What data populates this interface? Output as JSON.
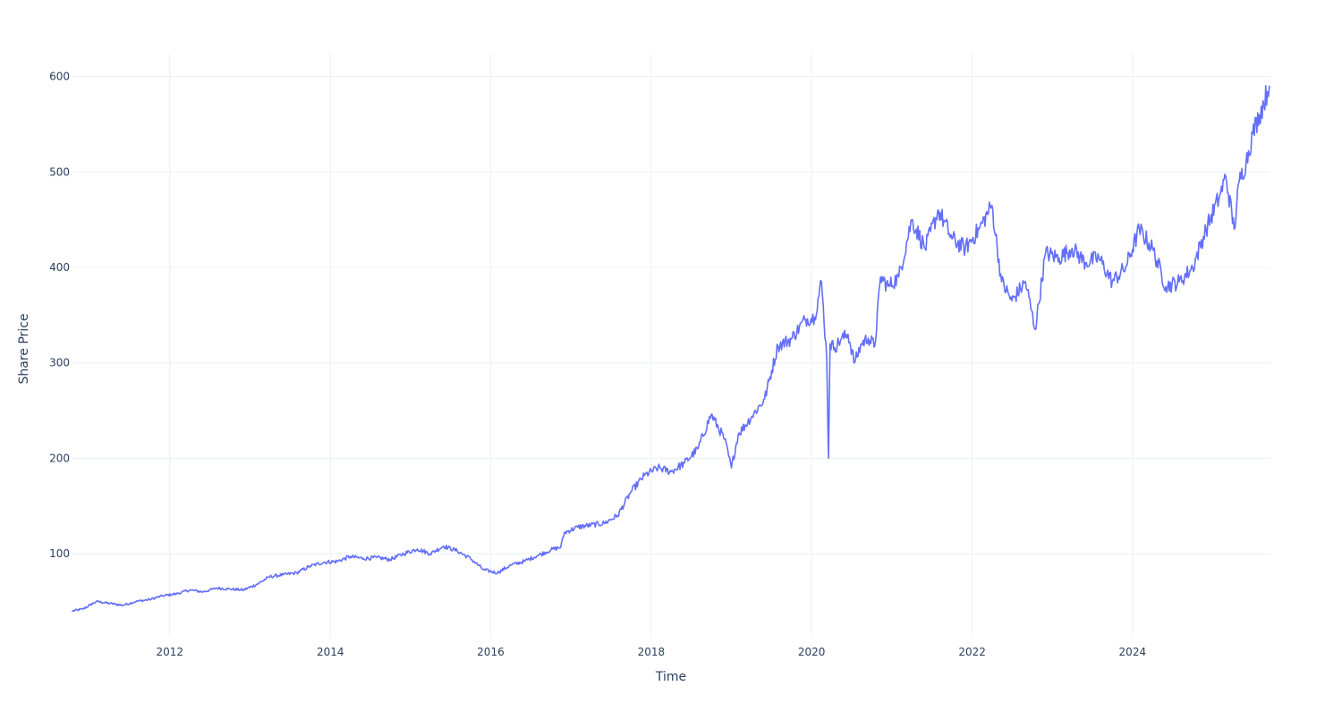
{
  "chart_data": {
    "type": "line",
    "title": "",
    "xlabel": "Time",
    "ylabel": "Share Price",
    "xlim": [
      "2010-10-15",
      "2025-09-20"
    ],
    "ylim": [
      12,
      624
    ],
    "x_ticks": [
      "2012-01-01",
      "2014-01-01",
      "2016-01-01",
      "2018-01-01",
      "2020-01-01",
      "2022-01-01",
      "2024-01-01"
    ],
    "x_tick_labels": [
      "2012",
      "2014",
      "2016",
      "2018",
      "2020",
      "2022",
      "2024"
    ],
    "y_ticks": [
      100,
      200,
      300,
      400,
      500,
      600
    ],
    "y_tick_labels": [
      "100",
      "200",
      "300",
      "400",
      "500",
      "600"
    ],
    "grid": true,
    "legend": "none",
    "colors": {
      "series": "#636efa",
      "grid": "#ebf0f8",
      "text": "#2a3f5f",
      "background": "#ffffff"
    },
    "series": [
      {
        "x": [
          "2010-10-15",
          "2010-12-01",
          "2011-02-01",
          "2011-04-01",
          "2011-06-01",
          "2011-08-01",
          "2011-10-01",
          "2011-12-01",
          "2012-02-01",
          "2012-04-01",
          "2012-06-01",
          "2012-08-01",
          "2012-10-01",
          "2012-12-01",
          "2013-02-01",
          "2013-04-01",
          "2013-06-01",
          "2013-08-01",
          "2013-10-01",
          "2013-12-01",
          "2014-02-01",
          "2014-04-01",
          "2014-06-01",
          "2014-08-01",
          "2014-10-01",
          "2014-12-01",
          "2015-02-01",
          "2015-04-01",
          "2015-06-01",
          "2015-08-01",
          "2015-10-01",
          "2015-12-01",
          "2016-02-01",
          "2016-04-01",
          "2016-06-01",
          "2016-08-01",
          "2016-10-01",
          "2016-11-15",
          "2016-12-01",
          "2017-02-01",
          "2017-04-01",
          "2017-06-01",
          "2017-08-01",
          "2017-10-01",
          "2017-12-01",
          "2018-02-01",
          "2018-04-01",
          "2018-06-01",
          "2018-08-01",
          "2018-10-01",
          "2018-12-01",
          "2019-01-01",
          "2019-02-01",
          "2019-04-01",
          "2019-06-01",
          "2019-08-01",
          "2019-10-01",
          "2019-12-01",
          "2020-01-15",
          "2020-02-15",
          "2020-03-10",
          "2020-03-18",
          "2020-03-25",
          "2020-04-15",
          "2020-05-15",
          "2020-06-15",
          "2020-07-15",
          "2020-08-15",
          "2020-09-15",
          "2020-10-15",
          "2020-11-10",
          "2020-12-15",
          "2021-02-01",
          "2021-04-01",
          "2021-06-01",
          "2021-08-01",
          "2021-10-01",
          "2021-12-01",
          "2022-02-01",
          "2022-04-01",
          "2022-05-15",
          "2022-07-01",
          "2022-09-01",
          "2022-10-15",
          "2022-12-01",
          "2023-02-01",
          "2023-04-01",
          "2023-06-01",
          "2023-08-01",
          "2023-10-01",
          "2023-12-01",
          "2024-02-01",
          "2024-04-01",
          "2024-06-01",
          "2024-08-01",
          "2024-10-01",
          "2024-12-01",
          "2025-02-01",
          "2025-03-01",
          "2025-04-08",
          "2025-05-01",
          "2025-06-01",
          "2025-07-01",
          "2025-08-01",
          "2025-09-15"
        ],
        "y": [
          40,
          42,
          50,
          48,
          46,
          50,
          52,
          56,
          58,
          62,
          60,
          64,
          63,
          62,
          68,
          76,
          78,
          80,
          87,
          91,
          92,
          97,
          95,
          96,
          94,
          100,
          105,
          100,
          108,
          103,
          95,
          83,
          80,
          88,
          92,
          98,
          104,
          107,
          122,
          128,
          130,
          132,
          140,
          165,
          182,
          190,
          186,
          195,
          210,
          246,
          220,
          190,
          225,
          243,
          262,
          318,
          325,
          345,
          348,
          385,
          305,
          200,
          320,
          316,
          325,
          330,
          300,
          320,
          326,
          318,
          390,
          380,
          390,
          450,
          420,
          460,
          430,
          420,
          440,
          465,
          385,
          365,
          385,
          335,
          415,
          410,
          420,
          405,
          410,
          385,
          400,
          440,
          420,
          380,
          385,
          400,
          440,
          475,
          495,
          440,
          490,
          510,
          540,
          560,
          590
        ]
      }
    ]
  }
}
